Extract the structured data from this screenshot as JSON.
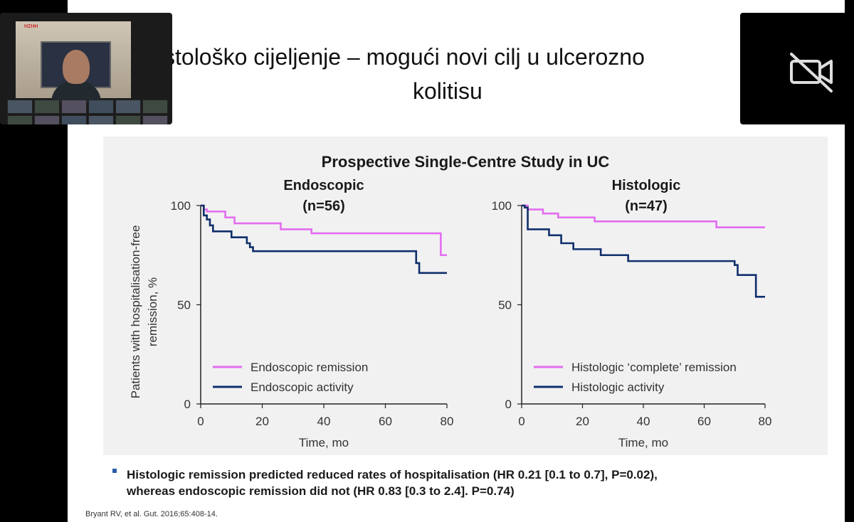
{
  "slide": {
    "title_line1": "stološko cijeljenje – mogući novi cilj u ulcerozno",
    "title_line2": "kolitisu"
  },
  "chart_data": [
    {
      "type": "line",
      "suptitle": "Prospective Single-Centre Study in UC",
      "title": "Endoscopic",
      "subtitle": "(n=56)",
      "xlabel": "Time, mo",
      "ylabel": "Patients with hospitalisation-free remission, %",
      "xlim": [
        0,
        80
      ],
      "ylim": [
        0,
        100
      ],
      "xticks": [
        0,
        20,
        40,
        60,
        80
      ],
      "yticks": [
        0,
        50,
        100
      ],
      "legend_position": "bottom-left",
      "series": [
        {
          "name": "Endoscopic remission",
          "color": "#e36cf0",
          "step": true,
          "x": [
            0,
            1,
            2,
            8,
            11,
            26,
            36,
            77,
            78,
            80
          ],
          "y": [
            100,
            98,
            97,
            94,
            91,
            88,
            86,
            86,
            75,
            75
          ]
        },
        {
          "name": "Endoscopic activity",
          "color": "#102f6b",
          "step": true,
          "x": [
            0,
            1,
            2,
            3,
            4,
            10,
            15,
            16,
            17,
            68,
            70,
            71,
            80
          ],
          "y": [
            100,
            95,
            93,
            90,
            87,
            84,
            81,
            79,
            77,
            77,
            71,
            66,
            66
          ]
        }
      ]
    },
    {
      "type": "line",
      "title": "Histologic",
      "subtitle": "(n=47)",
      "xlabel": "Time, mo",
      "xlim": [
        0,
        80
      ],
      "ylim": [
        0,
        100
      ],
      "xticks": [
        0,
        20,
        40,
        60,
        80
      ],
      "yticks": [
        0,
        50,
        100
      ],
      "legend_position": "bottom-left",
      "series": [
        {
          "name": "Histologic ‘complete’ remission",
          "color": "#e36cf0",
          "step": true,
          "x": [
            0,
            2,
            7,
            12,
            24,
            64,
            80
          ],
          "y": [
            100,
            98,
            96,
            94,
            92,
            89,
            89
          ]
        },
        {
          "name": "Histologic activity",
          "color": "#102f6b",
          "step": true,
          "x": [
            0,
            1,
            2,
            9,
            13,
            17,
            26,
            35,
            69,
            70,
            71,
            77,
            78,
            80
          ],
          "y": [
            100,
            99,
            88,
            85,
            81,
            78,
            75,
            72,
            72,
            70,
            65,
            54,
            54,
            54
          ]
        }
      ]
    }
  ],
  "bullet": {
    "line1": "Histologic remission predicted reduced rates of hospitalisation (HR 0.21 [0.1 to 0.7], P=0.02),",
    "line2": "whereas endoscopic remission did not (HR 0.83 [0.3 to 2.4]. P=0.74)"
  },
  "citation": "Bryant RV, et al. Gut. 2016;65:408-14.",
  "video": {
    "logo": "HZHH",
    "camera_off_icon": "camera-off-icon"
  },
  "colors": {
    "remission": "#e36cf0",
    "activity": "#102f6b",
    "panel_bg": "#f1f1f2",
    "bullet_marker": "#2b5ea8"
  }
}
